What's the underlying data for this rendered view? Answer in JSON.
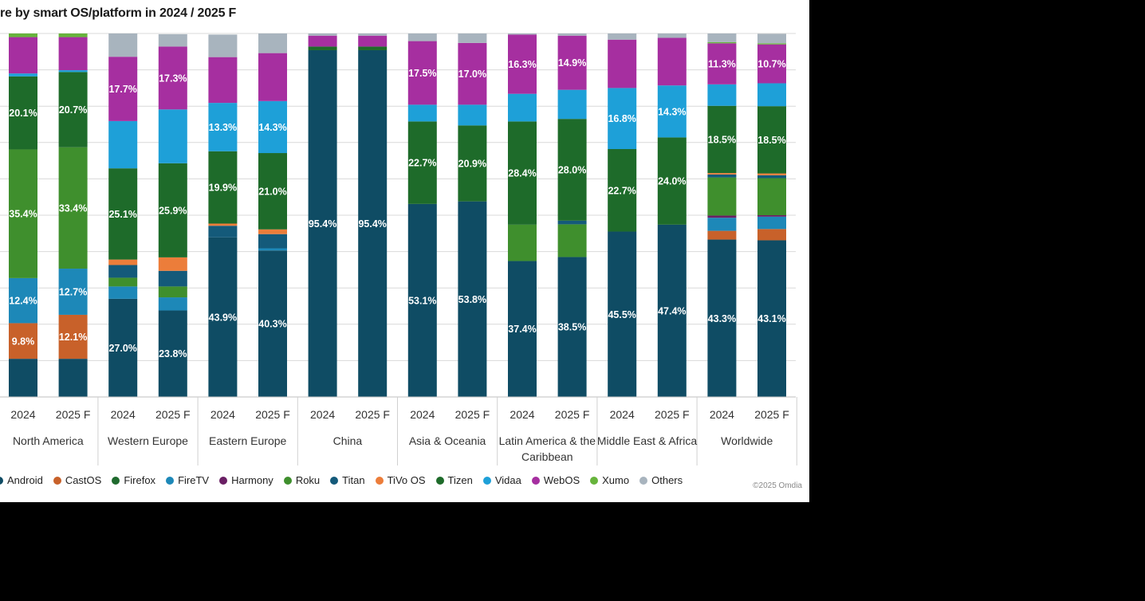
{
  "title": "re by smart OS/platform in 2024 / 2025 F",
  "copyright": "©2025 Omdia",
  "colors": {
    "Android": "#0f4c64",
    "CastOS": "#c8612a",
    "Firefox": "#1f6a2e",
    "FireTV": "#1d88b8",
    "Harmony": "#6a1f64",
    "Roku": "#3f8f2d",
    "Titan": "#145a7a",
    "TiVo OS": "#ec7d3a",
    "Tizen": "#1e6b2a",
    "Vidaa": "#1ea0d8",
    "WebOS": "#a62fa0",
    "Xumo": "#67b43c",
    "Others": "#a8b4be"
  },
  "chart_data": {
    "type": "bar",
    "stacked": true,
    "title": "re by smart OS/platform in 2024 / 2025 F",
    "ylim": [
      0,
      100
    ],
    "grid": true,
    "legend_position": "bottom",
    "categories": [
      "2024",
      "2025 F",
      "2024",
      "2025 F",
      "2024",
      "2025 F",
      "2024",
      "2025 F",
      "2024",
      "2025 F",
      "2024",
      "2025 F",
      "2024",
      "2025 F",
      "2024",
      "2025 F"
    ],
    "groups": [
      "North America",
      "Western Europe",
      "Eastern Europe",
      "China",
      "Asia & Oceania",
      "Latin America & the Caribbean",
      "Middle East & Africa",
      "Worldwide"
    ],
    "series": [
      {
        "name": "Android",
        "values": [
          10.5,
          10.5,
          27.0,
          23.8,
          43.9,
          40.3,
          95.4,
          95.4,
          53.1,
          53.8,
          37.4,
          38.5,
          45.5,
          47.4,
          43.3,
          43.1
        ]
      },
      {
        "name": "CastOS",
        "values": [
          9.8,
          12.1,
          0,
          0,
          0,
          0,
          0,
          0,
          0,
          0,
          0,
          0,
          0,
          0,
          2.4,
          3.1
        ]
      },
      {
        "name": "Firefox",
        "values": [
          0,
          0,
          0,
          0,
          0,
          0,
          0,
          0,
          0,
          0,
          0,
          0,
          0,
          0,
          0,
          0
        ]
      },
      {
        "name": "FireTV",
        "values": [
          12.4,
          12.7,
          3.4,
          3.6,
          0,
          0.6,
          0,
          0,
          0,
          0,
          0,
          0,
          0,
          0,
          3.6,
          3.4
        ]
      },
      {
        "name": "Harmony",
        "values": [
          0,
          0,
          0,
          0,
          0,
          0,
          0,
          0,
          0,
          0,
          0,
          0,
          0,
          0,
          0.6,
          0.4
        ]
      },
      {
        "name": "Roku",
        "values": [
          35.4,
          33.4,
          2.4,
          3.0,
          0,
          0,
          0,
          0,
          0,
          0,
          10.0,
          9.0,
          0,
          0,
          10.5,
          10.2
        ]
      },
      {
        "name": "Titan",
        "values": [
          0,
          0,
          3.5,
          4.3,
          3.2,
          3.9,
          0,
          0,
          0,
          0,
          0,
          1.0,
          0,
          0,
          0.8,
          0.8
        ]
      },
      {
        "name": "TiVo OS",
        "values": [
          0,
          0,
          1.5,
          3.7,
          0.6,
          1.3,
          0,
          0,
          0,
          0,
          0,
          0,
          0,
          0,
          0.4,
          0.5
        ]
      },
      {
        "name": "Tizen",
        "values": [
          20.1,
          20.7,
          25.1,
          25.9,
          19.9,
          21.0,
          1.0,
          1.0,
          22.7,
          20.9,
          28.4,
          28.0,
          22.7,
          24.0,
          18.5,
          18.5
        ]
      },
      {
        "name": "Vidaa",
        "values": [
          0.8,
          0.5,
          13.0,
          14.8,
          13.3,
          14.3,
          0,
          0,
          4.6,
          5.7,
          7.6,
          8.0,
          16.8,
          14.3,
          5.9,
          6.3
        ]
      },
      {
        "name": "WebOS",
        "values": [
          10.0,
          9.1,
          17.7,
          17.3,
          12.6,
          13.2,
          3.0,
          3.0,
          17.5,
          17.0,
          16.3,
          14.9,
          13.3,
          13.1,
          11.3,
          10.7
        ]
      },
      {
        "name": "Xumo",
        "values": [
          1.0,
          1.0,
          0,
          0,
          0,
          0,
          0,
          0,
          0,
          0,
          0,
          0,
          0,
          0,
          0.3,
          0.3
        ]
      },
      {
        "name": "Others",
        "values": [
          0,
          0,
          6.4,
          3.4,
          6.2,
          5.4,
          0.6,
          0.6,
          2.1,
          2.6,
          0.3,
          0.6,
          1.7,
          1.2,
          2.4,
          2.6
        ]
      }
    ],
    "data_labels": [
      {
        "bar": 0,
        "series": "CastOS",
        "text": "9.8%"
      },
      {
        "bar": 0,
        "series": "FireTV",
        "text": "12.4%"
      },
      {
        "bar": 0,
        "series": "Roku",
        "text": "35.4%"
      },
      {
        "bar": 0,
        "series": "Tizen",
        "text": "20.1%"
      },
      {
        "bar": 1,
        "series": "CastOS",
        "text": "12.1%"
      },
      {
        "bar": 1,
        "series": "FireTV",
        "text": "12.7%"
      },
      {
        "bar": 1,
        "series": "Roku",
        "text": "33.4%"
      },
      {
        "bar": 1,
        "series": "Tizen",
        "text": "20.7%"
      },
      {
        "bar": 2,
        "series": "Android",
        "text": "27.0%"
      },
      {
        "bar": 2,
        "series": "Tizen",
        "text": "25.1%"
      },
      {
        "bar": 2,
        "series": "WebOS",
        "text": "17.7%"
      },
      {
        "bar": 3,
        "series": "Android",
        "text": "23.8%"
      },
      {
        "bar": 3,
        "series": "Tizen",
        "text": "25.9%"
      },
      {
        "bar": 3,
        "series": "WebOS",
        "text": "17.3%"
      },
      {
        "bar": 4,
        "series": "Android",
        "text": "43.9%"
      },
      {
        "bar": 4,
        "series": "Tizen",
        "text": "19.9%"
      },
      {
        "bar": 4,
        "series": "Vidaa",
        "text": "13.3%"
      },
      {
        "bar": 5,
        "series": "Android",
        "text": "40.3%"
      },
      {
        "bar": 5,
        "series": "Tizen",
        "text": "21.0%"
      },
      {
        "bar": 5,
        "series": "Vidaa",
        "text": "14.3%"
      },
      {
        "bar": 6,
        "series": "Android",
        "text": "95.4%"
      },
      {
        "bar": 7,
        "series": "Android",
        "text": "95.4%"
      },
      {
        "bar": 8,
        "series": "Android",
        "text": "53.1%"
      },
      {
        "bar": 8,
        "series": "Tizen",
        "text": "22.7%"
      },
      {
        "bar": 8,
        "series": "WebOS",
        "text": "17.5%"
      },
      {
        "bar": 9,
        "series": "Android",
        "text": "53.8%"
      },
      {
        "bar": 9,
        "series": "Tizen",
        "text": "20.9%"
      },
      {
        "bar": 9,
        "series": "WebOS",
        "text": "17.0%"
      },
      {
        "bar": 10,
        "series": "Android",
        "text": "37.4%"
      },
      {
        "bar": 10,
        "series": "Tizen",
        "text": "28.4%"
      },
      {
        "bar": 10,
        "series": "WebOS",
        "text": "16.3%"
      },
      {
        "bar": 11,
        "series": "Android",
        "text": "38.5%"
      },
      {
        "bar": 11,
        "series": "Tizen",
        "text": "28.0%"
      },
      {
        "bar": 11,
        "series": "WebOS",
        "text": "14.9%"
      },
      {
        "bar": 12,
        "series": "Android",
        "text": "45.5%"
      },
      {
        "bar": 12,
        "series": "Tizen",
        "text": "22.7%"
      },
      {
        "bar": 12,
        "series": "Vidaa",
        "text": "16.8%"
      },
      {
        "bar": 13,
        "series": "Android",
        "text": "47.4%"
      },
      {
        "bar": 13,
        "series": "Tizen",
        "text": "24.0%"
      },
      {
        "bar": 13,
        "series": "Vidaa",
        "text": "14.3%"
      },
      {
        "bar": 14,
        "series": "Android",
        "text": "43.3%"
      },
      {
        "bar": 14,
        "series": "Tizen",
        "text": "18.5%"
      },
      {
        "bar": 14,
        "series": "WebOS",
        "text": "11.3%"
      },
      {
        "bar": 15,
        "series": "Android",
        "text": "43.1%"
      },
      {
        "bar": 15,
        "series": "Tizen",
        "text": "18.5%"
      },
      {
        "bar": 15,
        "series": "WebOS",
        "text": "10.7%"
      }
    ]
  },
  "legend": [
    {
      "label": "Android",
      "color": "#0f4c64"
    },
    {
      "label": "CastOS",
      "color": "#c8612a"
    },
    {
      "label": "Firefox",
      "color": "#1f6a2e"
    },
    {
      "label": "FireTV",
      "color": "#1d88b8"
    },
    {
      "label": "Harmony",
      "color": "#6a1f64"
    },
    {
      "label": "Roku",
      "color": "#3f8f2d"
    },
    {
      "label": "Titan",
      "color": "#145a7a"
    },
    {
      "label": "TiVo OS",
      "color": "#ec7d3a"
    },
    {
      "label": "Tizen",
      "color": "#1e6b2a"
    },
    {
      "label": "Vidaa",
      "color": "#1ea0d8"
    },
    {
      "label": "WebOS",
      "color": "#a62fa0"
    },
    {
      "label": "Xumo",
      "color": "#67b43c"
    },
    {
      "label": "Others",
      "color": "#a8b4be"
    }
  ]
}
